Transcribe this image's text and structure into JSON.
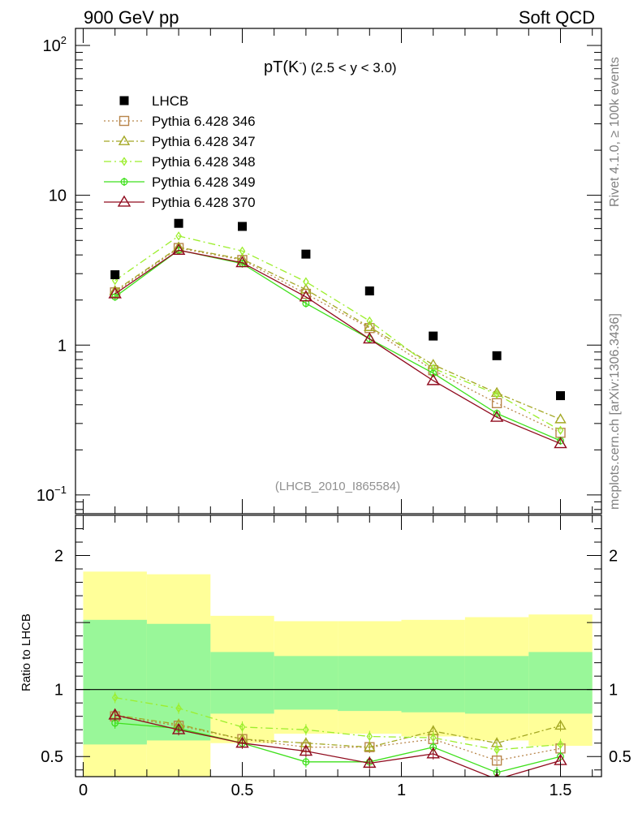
{
  "header": {
    "left": "900 GeV pp",
    "right": "Soft QCD"
  },
  "side_labels": {
    "top": "Rivet 4.1.0, ≥ 100k events",
    "bottom": "mcplots.cern.ch [arXiv:1306.3436]"
  },
  "chart_data": {
    "type": "scatter",
    "title": "pT(K⁻) (2.5 < y < 3.0)",
    "title_main": "pT(K",
    "title_sup": "-",
    "title_rest": ") (2.5 < y < 3.0)",
    "analysis_id": "(LHCB_2010_I865584)",
    "xlim": [
      -0.05,
      1.62
    ],
    "upper": {
      "yscale": "log",
      "ylim": [
        0.075,
        130
      ],
      "ytick_labels": [
        {
          "value": 100,
          "base": "10",
          "exp": "2"
        },
        {
          "value": 10,
          "base": "10",
          "exp": ""
        },
        {
          "value": 1,
          "base": "1",
          "exp": ""
        },
        {
          "value": 0.1,
          "base": "10",
          "exp": "−1"
        }
      ],
      "x": [
        0.1,
        0.3,
        0.5,
        0.7,
        0.9,
        1.1,
        1.3,
        1.5
      ],
      "data": {
        "name": "LHCB",
        "color": "#000000",
        "values": [
          2.95,
          6.5,
          6.2,
          4.05,
          2.3,
          1.15,
          0.85,
          0.46
        ]
      },
      "series": [
        {
          "name": "Pythia 6.428 346",
          "color": "#b8864b",
          "dash": "2,3",
          "marker": "square",
          "values": [
            2.25,
            4.45,
            3.7,
            2.2,
            1.3,
            0.68,
            0.41,
            0.26
          ]
        },
        {
          "name": "Pythia 6.428 347",
          "color": "#a4a824",
          "dash": "7,3,2,3",
          "marker": "triangle",
          "values": [
            2.3,
            4.5,
            3.75,
            2.35,
            1.32,
            0.74,
            0.48,
            0.32
          ]
        },
        {
          "name": "Pythia 6.428 348",
          "color": "#9cee2c",
          "dash": "9,4,2,4",
          "marker": "diamond",
          "values": [
            2.7,
            5.35,
            4.25,
            2.65,
            1.45,
            0.7,
            0.47,
            0.27
          ]
        },
        {
          "name": "Pythia 6.428 349",
          "color": "#3fe01c",
          "dash": "",
          "marker": "cross",
          "values": [
            2.1,
            4.3,
            3.5,
            1.9,
            1.1,
            0.65,
            0.35,
            0.23
          ]
        },
        {
          "name": "Pythia 6.428 370",
          "color": "#900b1e",
          "dash": "",
          "marker": "triangle-open",
          "values": [
            2.2,
            4.3,
            3.55,
            2.1,
            1.1,
            0.58,
            0.33,
            0.22
          ]
        }
      ]
    },
    "ratio": {
      "ylabel": "Ratio to LHCB",
      "ylim": [
        0.35,
        2.3
      ],
      "ytick_labels": [
        "2",
        "1",
        "0.5"
      ],
      "ytick_values": [
        2,
        1,
        0.5
      ],
      "bands_x": [
        0.0,
        0.2,
        0.4,
        0.6,
        0.8,
        1.0,
        1.2,
        1.4,
        1.6
      ],
      "outer_band": {
        "color": "#ffff99",
        "low": [
          0.35,
          0.35,
          0.6,
          0.67,
          0.67,
          0.65,
          0.62,
          0.58
        ],
        "high": [
          1.88,
          1.86,
          1.55,
          1.51,
          1.51,
          1.52,
          1.54,
          1.56
        ]
      },
      "inner_band": {
        "color": "#99f799",
        "low": [
          0.59,
          0.62,
          0.82,
          0.85,
          0.84,
          0.83,
          0.82,
          0.82
        ],
        "high": [
          1.52,
          1.49,
          1.28,
          1.25,
          1.25,
          1.25,
          1.25,
          1.28
        ]
      },
      "series_values": [
        [
          0.8,
          0.73,
          0.63,
          0.57,
          0.57,
          0.63,
          0.47,
          0.56
        ],
        [
          0.81,
          0.74,
          0.63,
          0.6,
          0.57,
          0.69,
          0.6,
          0.73
        ],
        [
          0.94,
          0.86,
          0.72,
          0.7,
          0.65,
          0.64,
          0.55,
          0.59
        ],
        [
          0.75,
          0.71,
          0.6,
          0.46,
          0.46,
          0.57,
          0.38,
          0.5
        ],
        [
          0.81,
          0.7,
          0.6,
          0.54,
          0.45,
          0.52,
          0.33,
          0.47
        ]
      ]
    },
    "xtick_labels": [
      "0",
      "0.5",
      "1",
      "1.5"
    ],
    "xtick_values": [
      0,
      0.5,
      1,
      1.5
    ]
  }
}
